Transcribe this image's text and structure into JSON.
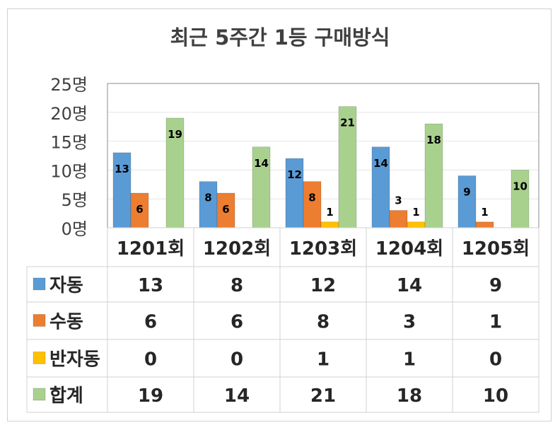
{
  "title": "최근 5주간 1등 구매방식",
  "chart_data": {
    "type": "bar",
    "title": "최근 5주간 1등 구매방식",
    "categories": [
      "1201회",
      "1202회",
      "1203회",
      "1204회",
      "1205회"
    ],
    "ylim": [
      0,
      25
    ],
    "ytick_labels": [
      "0명",
      "5명",
      "10명",
      "15명",
      "20명",
      "25명"
    ],
    "grid": true,
    "legend": "data-table",
    "series": [
      {
        "name": "자동",
        "color": "#5b9bd5",
        "values": [
          13,
          8,
          12,
          14,
          9
        ]
      },
      {
        "name": "수동",
        "color": "#ed7d31",
        "values": [
          6,
          6,
          8,
          3,
          1
        ]
      },
      {
        "name": "반자동",
        "color": "#ffc000",
        "values": [
          0,
          0,
          1,
          1,
          0
        ]
      },
      {
        "name": "합계",
        "color": "#a9d18e",
        "values": [
          19,
          14,
          21,
          18,
          10
        ]
      }
    ]
  }
}
